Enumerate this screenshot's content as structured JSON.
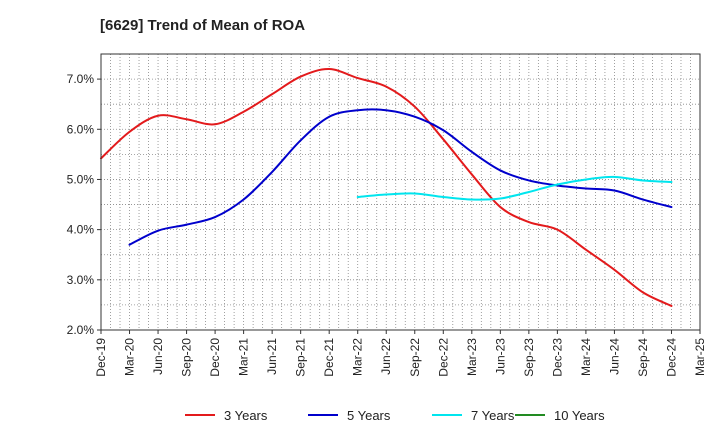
{
  "chart_data": {
    "type": "line",
    "title": "[6629]  Trend of Mean of ROA",
    "xlabel": "",
    "ylabel": "",
    "y_unit": "%",
    "ylim": [
      2.0,
      7.5
    ],
    "yticks": [
      2.0,
      3.0,
      4.0,
      5.0,
      6.0,
      7.0
    ],
    "ytick_labels": [
      "2.0%",
      "3.0%",
      "4.0%",
      "5.0%",
      "6.0%",
      "7.0%"
    ],
    "grid": true,
    "legend_position": "bottom",
    "x": [
      "Dec-19",
      "Mar-20",
      "Jun-20",
      "Sep-20",
      "Dec-20",
      "Mar-21",
      "Jun-21",
      "Sep-21",
      "Dec-21",
      "Mar-22",
      "Jun-22",
      "Sep-22",
      "Dec-22",
      "Mar-23",
      "Jun-23",
      "Sep-23",
      "Dec-23",
      "Mar-24",
      "Jun-24",
      "Sep-24",
      "Dec-24",
      "Mar-25"
    ],
    "series": [
      {
        "name": "3 Years",
        "color": "#e31a1c",
        "values": [
          5.42,
          5.95,
          6.27,
          6.2,
          6.1,
          6.35,
          6.7,
          7.05,
          7.2,
          7.02,
          6.85,
          6.45,
          5.8,
          5.1,
          4.45,
          4.15,
          4.0,
          3.6,
          3.2,
          2.75,
          2.48,
          null
        ]
      },
      {
        "name": "5 Years",
        "color": "#0000cc",
        "values": [
          null,
          3.7,
          3.98,
          4.1,
          4.25,
          4.6,
          5.15,
          5.78,
          6.25,
          6.38,
          6.38,
          6.25,
          5.98,
          5.55,
          5.18,
          4.98,
          4.88,
          4.82,
          4.78,
          4.6,
          4.45,
          null
        ]
      },
      {
        "name": "7 Years",
        "color": "#00e5ee",
        "values": [
          null,
          null,
          null,
          null,
          null,
          null,
          null,
          null,
          null,
          4.65,
          4.7,
          4.72,
          4.65,
          4.6,
          4.62,
          4.75,
          4.9,
          5.0,
          5.05,
          4.98,
          4.95,
          null
        ]
      },
      {
        "name": "10 Years",
        "color": "#228b22",
        "values": [
          null,
          null,
          null,
          null,
          null,
          null,
          null,
          null,
          null,
          null,
          null,
          null,
          null,
          null,
          null,
          null,
          null,
          null,
          null,
          null,
          null,
          null
        ]
      }
    ]
  }
}
